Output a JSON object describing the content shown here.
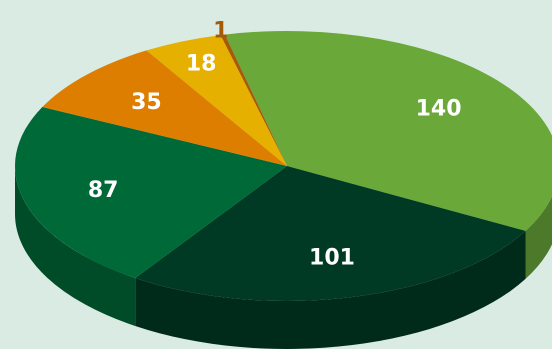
{
  "chart_data": {
    "type": "pie",
    "title": "",
    "style": "3d",
    "legend": "none",
    "slices": [
      {
        "value": 140,
        "label": "140",
        "color": "#6aa83a",
        "label_color": "#ffffff"
      },
      {
        "value": 101,
        "label": "101",
        "color": "#003a24",
        "label_color": "#ffffff"
      },
      {
        "value": 87,
        "label": "87",
        "color": "#006938",
        "label_color": "#ffffff"
      },
      {
        "value": 35,
        "label": "35",
        "color": "#de7e00",
        "label_color": "#ffffff"
      },
      {
        "value": 18,
        "label": "18",
        "color": "#e6b000",
        "label_color": "#ffffff"
      },
      {
        "value": 1,
        "label": "1",
        "color": "#a55a08",
        "label_color": "#a55a08"
      }
    ]
  }
}
